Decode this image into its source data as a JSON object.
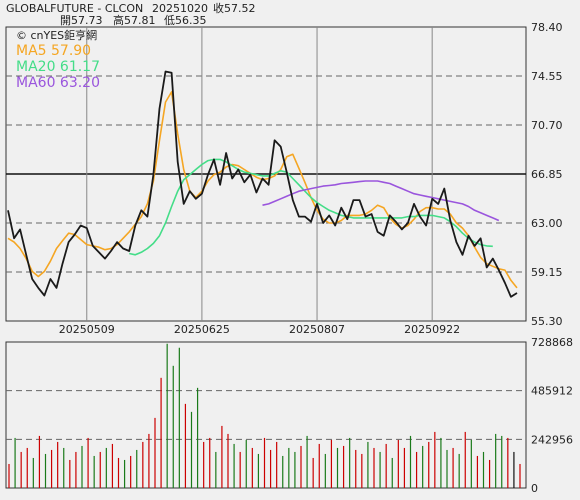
{
  "header": {
    "symbol": "GLOBALFUTURE - CLCON",
    "date": "20251020",
    "close_label": "收57.52",
    "open_label": "開57.73",
    "high_label": "高57.81",
    "low_label": "低56.35"
  },
  "legend": {
    "source": "© cnYES鉅亨網",
    "ma5": "MA5 57.90",
    "ma20": "MA20 61.17",
    "ma60": "MA60 63.20"
  },
  "colors": {
    "price": "#1a1a1a",
    "ma5": "#f5a623",
    "ma20": "#44dd88",
    "ma60": "#9a55dd",
    "up": "#cc0000",
    "down": "#1a7a1a",
    "flat": "#111111",
    "grid": "#666666",
    "background": "#f0f0f0"
  },
  "chart_data": [
    {
      "type": "line",
      "title": "",
      "x_ticks": [
        "20250509",
        "20250625",
        "20250807",
        "20250922"
      ],
      "y_ticks": [
        "78.40",
        "74.55",
        "70.70",
        "66.85",
        "63.00",
        "59.15",
        "55.30"
      ],
      "ylim": [
        55.3,
        78.4
      ],
      "reference_line": 66.85,
      "grid": true,
      "series": [
        {
          "name": "MA5 57.90",
          "key": "ma5",
          "values": [
            61.8,
            61.5,
            61.0,
            60.2,
            59.2,
            58.8,
            59.2,
            60.0,
            61.0,
            61.6,
            62.2,
            62.1,
            61.7,
            61.3,
            61.2,
            61.1,
            60.9,
            61.0,
            61.3,
            61.8,
            62.3,
            62.9,
            63.5,
            64.5,
            66.3,
            69.5,
            72.5,
            73.3,
            70.0,
            67.2,
            65.5,
            65.0,
            65.5,
            66.3,
            66.8,
            67.0,
            67.4,
            67.6,
            67.5,
            67.2,
            66.9,
            66.6,
            66.4,
            66.5,
            66.7,
            67.2,
            68.2,
            68.4,
            67.3,
            66.2,
            65.0,
            64.0,
            63.3,
            63.0,
            63.0,
            63.2,
            63.6,
            63.6,
            63.6,
            63.7,
            64.0,
            64.4,
            64.2,
            63.4,
            62.9,
            62.6,
            62.8,
            63.3,
            63.9,
            64.2,
            64.2,
            64.1,
            64.1,
            63.7,
            63.0,
            62.6,
            62.0,
            61.1,
            60.3,
            59.8,
            59.6,
            59.4,
            59.3,
            58.5,
            57.9
          ]
        },
        {
          "name": "MA20 61.17",
          "key": "ma20",
          "values": [
            null,
            null,
            null,
            null,
            null,
            null,
            null,
            null,
            null,
            null,
            null,
            null,
            null,
            null,
            null,
            null,
            null,
            null,
            null,
            null,
            60.6,
            60.5,
            60.7,
            61.0,
            61.4,
            62.0,
            63.0,
            64.3,
            65.5,
            66.4,
            66.8,
            67.2,
            67.6,
            67.9,
            68.0,
            68.0,
            67.8,
            67.5,
            67.2,
            67.0,
            66.9,
            66.8,
            66.7,
            66.7,
            66.9,
            67.1,
            67.0,
            66.5,
            66.0,
            65.5,
            65.0,
            64.6,
            64.3,
            64.0,
            63.8,
            63.6,
            63.5,
            63.4,
            63.4,
            63.4,
            63.4,
            63.4,
            63.4,
            63.4,
            63.4,
            63.4,
            63.5,
            63.5,
            63.6,
            63.6,
            63.6,
            63.5,
            63.4,
            63.1,
            62.7,
            62.2,
            61.8,
            61.5,
            61.3,
            61.2,
            61.17
          ]
        },
        {
          "name": "MA60 63.20",
          "key": "ma60",
          "values": [
            null,
            null,
            null,
            null,
            null,
            null,
            null,
            null,
            null,
            null,
            null,
            null,
            null,
            null,
            null,
            null,
            null,
            null,
            null,
            null,
            null,
            null,
            null,
            null,
            null,
            null,
            null,
            null,
            null,
            null,
            null,
            null,
            null,
            null,
            null,
            null,
            null,
            null,
            null,
            null,
            null,
            null,
            64.4,
            64.5,
            64.7,
            64.9,
            65.1,
            65.3,
            65.5,
            65.6,
            65.7,
            65.8,
            65.9,
            65.95,
            66.0,
            66.1,
            66.15,
            66.2,
            66.25,
            66.3,
            66.3,
            66.3,
            66.2,
            66.1,
            65.9,
            65.7,
            65.5,
            65.3,
            65.2,
            65.1,
            65.0,
            64.9,
            64.8,
            64.7,
            64.6,
            64.5,
            64.3,
            64.0,
            63.8,
            63.6,
            63.4,
            63.2
          ]
        },
        {
          "name": "",
          "key": "price",
          "values": [
            64.0,
            61.8,
            62.5,
            60.5,
            58.6,
            57.9,
            57.3,
            58.6,
            57.9,
            59.8,
            61.5,
            62.1,
            62.8,
            62.6,
            61.2,
            60.7,
            60.2,
            60.8,
            61.5,
            61.0,
            60.8,
            62.8,
            64.0,
            63.5,
            66.8,
            72.0,
            74.9,
            74.8,
            67.8,
            64.5,
            65.5,
            64.9,
            65.3,
            66.8,
            68.0,
            66.0,
            68.5,
            66.5,
            67.2,
            66.2,
            66.8,
            65.4,
            66.5,
            66.0,
            69.5,
            69.0,
            67.0,
            64.8,
            63.5,
            63.5,
            63.1,
            64.5,
            63.0,
            63.6,
            62.8,
            64.2,
            63.3,
            64.8,
            64.8,
            63.5,
            63.7,
            62.3,
            62.0,
            63.6,
            63.1,
            62.5,
            63.0,
            64.5,
            63.5,
            62.8,
            64.9,
            64.5,
            65.7,
            63.2,
            61.5,
            60.5,
            62.0,
            61.2,
            61.8,
            59.5,
            60.2,
            59.3,
            58.3,
            57.2,
            57.5
          ]
        }
      ]
    },
    {
      "type": "bar",
      "title": "",
      "y_ticks": [
        "728868",
        "485912",
        "242956",
        "0"
      ],
      "ylim": [
        0,
        728868
      ],
      "legend": "none",
      "series": [
        {
          "name": "",
          "values": [
            120000,
            250000,
            180000,
            200000,
            150000,
            260000,
            170000,
            190000,
            230000,
            200000,
            140000,
            180000,
            210000,
            250000,
            160000,
            180000,
            200000,
            220000,
            150000,
            140000,
            160000,
            190000,
            230000,
            270000,
            350000,
            550000,
            720000,
            610000,
            700000,
            420000,
            380000,
            500000,
            230000,
            250000,
            180000,
            310000,
            270000,
            220000,
            180000,
            240000,
            200000,
            170000,
            250000,
            190000,
            230000,
            160000,
            200000,
            180000,
            210000,
            260000,
            150000,
            220000,
            170000,
            240000,
            200000,
            210000,
            250000,
            190000,
            170000,
            230000,
            200000,
            180000,
            220000,
            150000,
            240000,
            200000,
            260000,
            180000,
            210000,
            230000,
            280000,
            250000,
            190000,
            200000,
            170000,
            280000,
            240000,
            160000,
            180000,
            140000,
            270000,
            260000,
            250000,
            180000,
            120000
          ],
          "directions": [
            "up",
            "down",
            "up",
            "up",
            "down",
            "up",
            "down",
            "up",
            "up",
            "down",
            "up",
            "up",
            "down",
            "up",
            "down",
            "up",
            "down",
            "up",
            "up",
            "down",
            "up",
            "down",
            "up",
            "up",
            "up",
            "up",
            "down",
            "down",
            "down",
            "up",
            "down",
            "down",
            "up",
            "up",
            "down",
            "up",
            "up",
            "down",
            "up",
            "down",
            "up",
            "down",
            "up",
            "up",
            "up",
            "down",
            "down",
            "down",
            "up",
            "down",
            "up",
            "up",
            "down",
            "up",
            "down",
            "up",
            "down",
            "up",
            "up",
            "down",
            "up",
            "down",
            "up",
            "down",
            "up",
            "up",
            "down",
            "up",
            "down",
            "up",
            "up",
            "down",
            "down",
            "up",
            "down",
            "up",
            "down",
            "up",
            "down",
            "up",
            "down",
            "down",
            "up",
            "flat",
            "up"
          ]
        }
      ]
    }
  ]
}
